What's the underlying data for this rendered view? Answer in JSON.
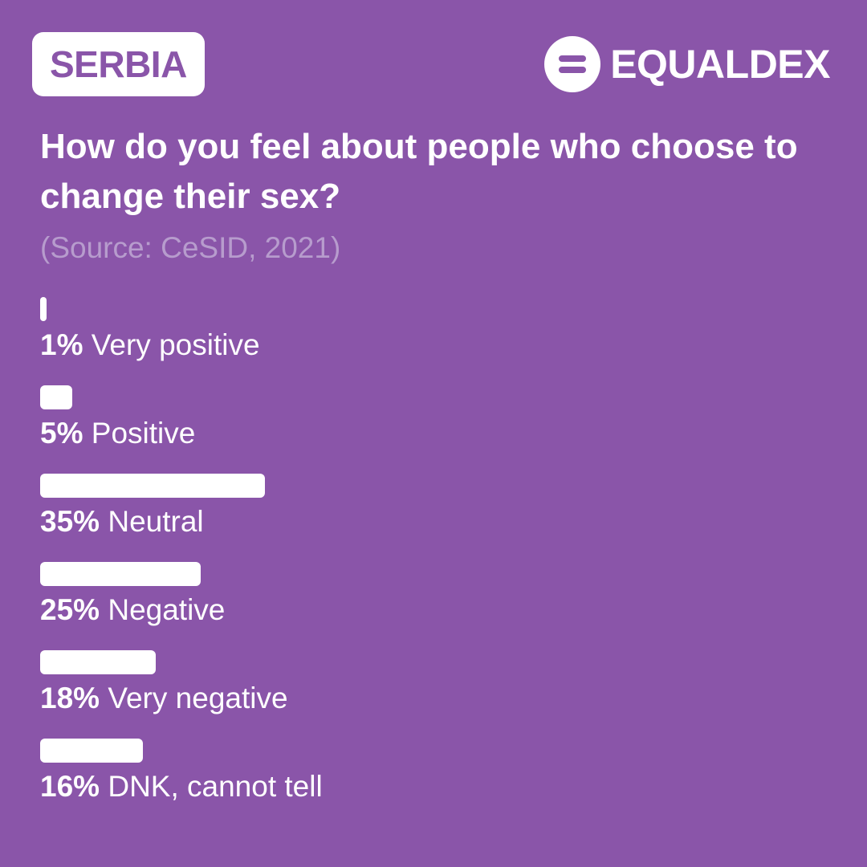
{
  "header": {
    "country": "SERBIA",
    "brand_name": "EQUALDEX",
    "brand_icon": "equals-circle-logo-icon"
  },
  "question": "How do you feel about people who choose to change their sex?",
  "source": "(Source: CeSID, 2021)",
  "colors": {
    "background": "#8a55a9",
    "bar": "#ffffff",
    "source_text": "#b79ccd"
  },
  "chart_data": {
    "type": "bar",
    "orientation": "horizontal",
    "title": "How do you feel about people who choose to change their sex?",
    "subtitle": "(Source: CeSID, 2021)",
    "categories": [
      "Very positive",
      "Positive",
      "Neutral",
      "Negative",
      "Very negative",
      "DNK, cannot tell"
    ],
    "values": [
      1,
      5,
      35,
      25,
      18,
      16
    ],
    "value_labels": [
      "1%",
      "5%",
      "35%",
      "25%",
      "18%",
      "16%"
    ],
    "unit": "%",
    "xlim": [
      0,
      100
    ],
    "grid": false
  }
}
